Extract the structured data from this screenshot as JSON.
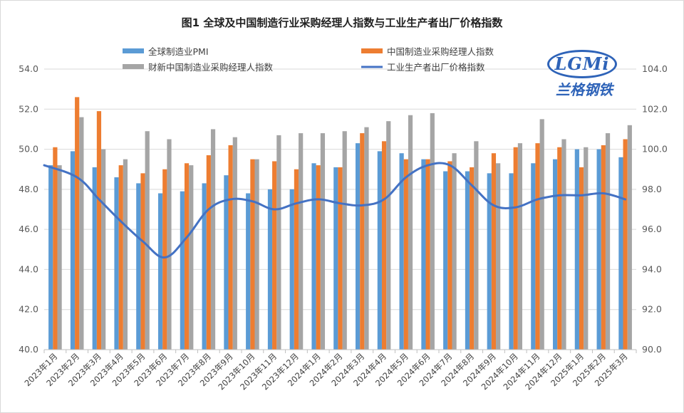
{
  "chart_data": {
    "type": "bar",
    "title": "图1 全球及中国制造行业采购经理人指数与工业生产者出厂价格指数",
    "categories": [
      "2023年1月",
      "2023年2月",
      "2023年3月",
      "2023年4月",
      "2023年5月",
      "2023年6月",
      "2023年7月",
      "2023年8月",
      "2023年9月",
      "2023年10月",
      "2023年11月",
      "2023年12月",
      "2024年1月",
      "2024年2月",
      "2024年3月",
      "2024年4月",
      "2024年5月",
      "2024年6月",
      "2024年7月",
      "2024年8月",
      "2024年9月",
      "2024年10月",
      "2024年11月",
      "2024年12月",
      "2025年1月",
      "2025年2月",
      "2025年3月"
    ],
    "series": [
      {
        "name": "全球制造业PMI",
        "type": "bar",
        "axis": "left",
        "color": "#5b9bd5",
        "values": [
          49.2,
          49.9,
          49.1,
          48.6,
          48.3,
          47.8,
          47.9,
          48.3,
          48.7,
          47.8,
          48.0,
          48.0,
          49.3,
          49.1,
          50.3,
          49.9,
          49.8,
          49.5,
          48.9,
          48.9,
          48.8,
          48.8,
          49.3,
          49.5,
          50.0,
          50.0,
          49.6
        ]
      },
      {
        "name": "中国制造业采购经理人指数",
        "type": "bar",
        "axis": "left",
        "color": "#ed7d31",
        "values": [
          50.1,
          52.6,
          51.9,
          49.2,
          48.8,
          49.0,
          49.3,
          49.7,
          50.2,
          49.5,
          49.4,
          49.0,
          49.2,
          49.1,
          50.8,
          50.4,
          49.5,
          49.5,
          49.4,
          49.1,
          49.8,
          50.1,
          50.3,
          50.1,
          49.1,
          50.2,
          50.5
        ]
      },
      {
        "name": "财新中国制造业采购经理人指数",
        "type": "bar",
        "axis": "left",
        "color": "#a5a5a5",
        "values": [
          49.2,
          51.6,
          50.0,
          49.5,
          50.9,
          50.5,
          49.2,
          51.0,
          50.6,
          49.5,
          50.7,
          50.8,
          50.8,
          50.9,
          51.1,
          51.4,
          51.7,
          51.8,
          49.8,
          50.4,
          49.3,
          50.3,
          51.5,
          50.5,
          50.1,
          50.8,
          51.2
        ]
      },
      {
        "name": "工业生产者出厂价格指数",
        "type": "line",
        "axis": "right",
        "color": "#4472c4",
        "values": [
          99.2,
          98.6,
          97.5,
          96.4,
          95.4,
          94.6,
          95.6,
          97.0,
          97.5,
          97.4,
          97.0,
          97.3,
          97.5,
          97.3,
          97.2,
          97.5,
          98.6,
          99.2,
          99.2,
          98.2,
          97.2,
          97.1,
          97.5,
          97.7,
          97.7,
          97.8,
          97.5
        ]
      }
    ],
    "y_left": {
      "min": 40,
      "max": 54,
      "ticks": [
        "40.0",
        "42.0",
        "44.0",
        "46.0",
        "48.0",
        "50.0",
        "52.0",
        "54.0"
      ]
    },
    "y_right": {
      "min": 90,
      "max": 104,
      "ticks": [
        "90.0",
        "92.0",
        "94.0",
        "96.0",
        "98.0",
        "100.0",
        "102.0",
        "104.0"
      ]
    },
    "grid": true,
    "legend_position": "top"
  },
  "logo": {
    "mark": "LGMi",
    "subtitle": "兰格钢铁"
  }
}
